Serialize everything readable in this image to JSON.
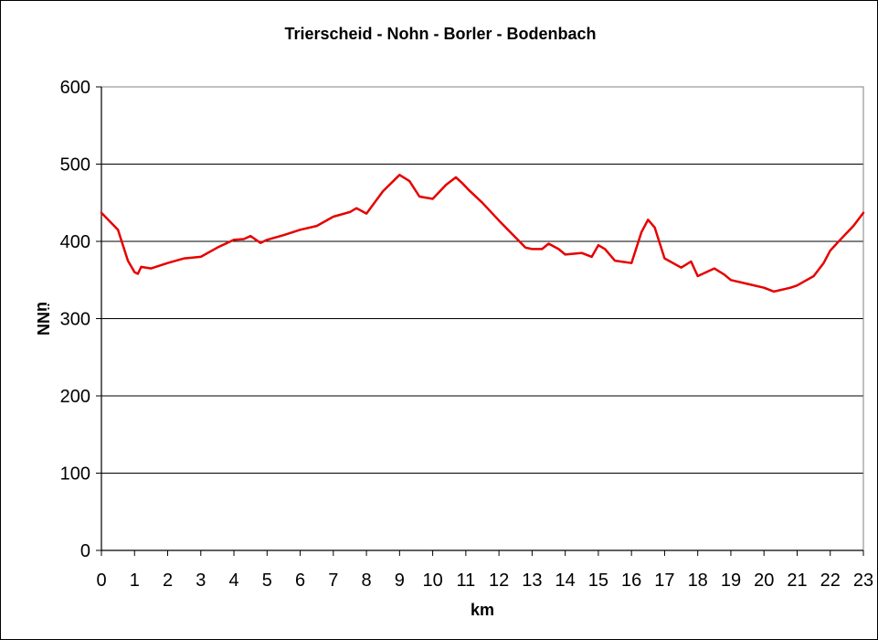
{
  "chart_data": {
    "type": "line",
    "title": "Trierscheid - Nohn - Borler - Bodenbach",
    "xlabel": "km",
    "ylabel": "üNN",
    "xlim": [
      0,
      23
    ],
    "ylim": [
      0,
      600
    ],
    "x_ticks": [
      0,
      1,
      2,
      3,
      4,
      5,
      6,
      7,
      8,
      9,
      10,
      11,
      12,
      13,
      14,
      15,
      16,
      17,
      18,
      19,
      20,
      21,
      22,
      23
    ],
    "y_ticks": [
      0,
      100,
      200,
      300,
      400,
      500,
      600
    ],
    "grid": "horizontal",
    "legend": "none",
    "series": [
      {
        "color": "#e60000",
        "x": [
          0,
          0.5,
          0.8,
          1.0,
          1.1,
          1.2,
          1.5,
          2.0,
          2.5,
          3.0,
          3.5,
          4.0,
          4.3,
          4.5,
          4.8,
          5.0,
          5.5,
          6.0,
          6.5,
          7.0,
          7.5,
          7.7,
          8.0,
          8.5,
          9.0,
          9.3,
          9.6,
          10.0,
          10.4,
          10.7,
          10.9,
          11.1,
          11.5,
          12.0,
          12.5,
          12.8,
          13.0,
          13.3,
          13.5,
          13.8,
          14.0,
          14.5,
          14.8,
          15.0,
          15.2,
          15.5,
          16.0,
          16.3,
          16.5,
          16.7,
          17.0,
          17.5,
          17.8,
          18.0,
          18.5,
          18.8,
          19.0,
          19.5,
          20.0,
          20.3,
          20.8,
          21.0,
          21.5,
          21.8,
          22.0,
          22.3,
          22.7,
          23.0
        ],
        "y": [
          437,
          415,
          375,
          360,
          358,
          367,
          365,
          372,
          378,
          380,
          392,
          402,
          403,
          407,
          398,
          402,
          408,
          415,
          420,
          432,
          438,
          443,
          436,
          465,
          486,
          478,
          458,
          455,
          473,
          483,
          475,
          466,
          450,
          427,
          405,
          392,
          390,
          390,
          397,
          390,
          383,
          385,
          380,
          395,
          390,
          375,
          372,
          412,
          428,
          418,
          378,
          366,
          374,
          355,
          365,
          357,
          350,
          345,
          340,
          335,
          340,
          343,
          355,
          372,
          388,
          402,
          420,
          437
        ]
      }
    ]
  }
}
